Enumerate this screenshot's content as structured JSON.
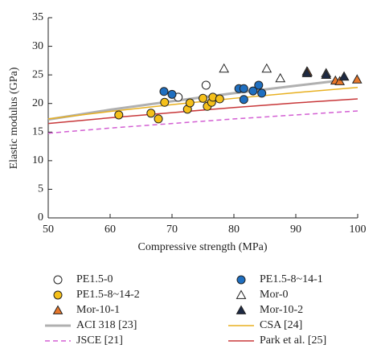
{
  "chart_data": {
    "type": "scatter",
    "xlabel": "Compressive strength (MPa)",
    "ylabel": "Elastic modulus (GPa)",
    "xlim": [
      50,
      100
    ],
    "xticks": [
      50,
      60,
      70,
      80,
      90,
      100
    ],
    "ylim": [
      0,
      35
    ],
    "yticks": [
      0,
      5,
      10,
      15,
      20,
      25,
      30,
      35
    ],
    "series": [
      {
        "name": "PE1.5-0",
        "marker": "circle",
        "color": "#ffffff",
        "x": [
          71.0,
          75.5
        ],
        "values": [
          21.1,
          23.2
        ]
      },
      {
        "name": "PE1.5-8~14-1",
        "marker": "circle",
        "color": "#1f6fc0",
        "x": [
          68.7,
          70.0,
          80.8,
          81.6,
          81.6,
          83.1,
          84.0,
          84.5
        ],
        "values": [
          22.1,
          21.6,
          22.6,
          22.6,
          20.7,
          22.2,
          23.2,
          21.8
        ]
      },
      {
        "name": "PE1.5-8~14-2",
        "marker": "circle",
        "color": "#f5c01a",
        "x": [
          61.4,
          66.6,
          67.8,
          68.8,
          72.5,
          72.9,
          75.0,
          75.7,
          76.4,
          76.6,
          77.7
        ],
        "values": [
          18.0,
          18.3,
          17.3,
          20.2,
          19.0,
          20.1,
          20.9,
          19.5,
          20.2,
          21.1,
          20.8
        ]
      },
      {
        "name": "Mor-0",
        "marker": "triangle",
        "color": "#ffffff",
        "x": [
          78.4,
          85.3,
          87.5,
          91.8,
          94.9,
          97.8
        ],
        "values": [
          26.1,
          26.1,
          24.4,
          25.6,
          25.3,
          24.7
        ]
      },
      {
        "name": "Mor-10-1",
        "marker": "triangle",
        "color": "#e8772a",
        "x": [
          91.9,
          96.4,
          97.1,
          99.9
        ],
        "values": [
          25.5,
          24.0,
          23.9,
          24.2
        ]
      },
      {
        "name": "Mor-10-2",
        "marker": "triangle",
        "color": "#1d2a44",
        "x": [
          91.8,
          94.9,
          97.8
        ],
        "values": [
          25.3,
          25.0,
          24.7
        ]
      },
      {
        "name": "ACI 318 [23]",
        "marker": "line",
        "color": "#b0b0b0",
        "x": [
          50,
          60,
          70,
          80,
          90,
          97
        ],
        "values": [
          17.2,
          18.9,
          20.4,
          21.8,
          23.1,
          24.0
        ]
      },
      {
        "name": "CSA [24]",
        "marker": "line",
        "color": "#e8b020",
        "x": [
          50,
          60,
          70,
          80,
          90,
          100
        ],
        "values": [
          17.3,
          18.6,
          19.8,
          20.9,
          21.9,
          22.8
        ]
      },
      {
        "name": "JSCE [21]",
        "marker": "dashed",
        "color": "#d35fd3",
        "x": [
          50,
          60,
          70,
          80,
          90,
          100
        ],
        "values": [
          14.8,
          15.7,
          16.5,
          17.3,
          18.0,
          18.7
        ]
      },
      {
        "name": "Park et al. [25]",
        "marker": "line",
        "color": "#c8383a",
        "x": [
          50,
          60,
          70,
          80,
          90,
          100
        ],
        "values": [
          16.5,
          17.5,
          18.4,
          19.3,
          20.1,
          20.8
        ]
      }
    ]
  }
}
